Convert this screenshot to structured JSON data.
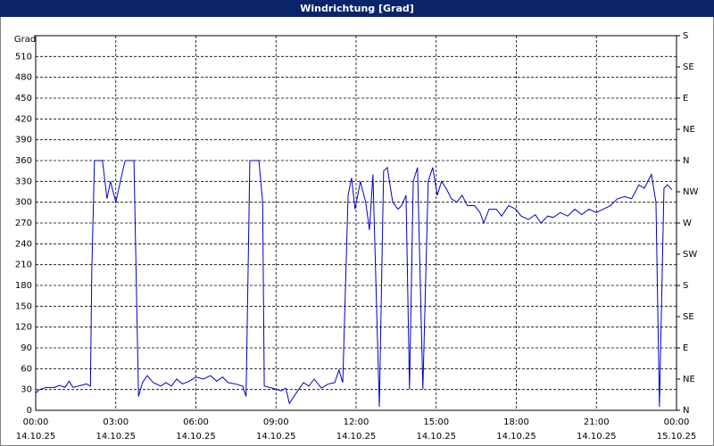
{
  "chart_data": {
    "type": "line",
    "title": "Windrichtung [Grad]",
    "y_label": "Grad",
    "color": "#0000cc",
    "grid": true,
    "xlim": [
      0,
      24
    ],
    "xticks": [
      {
        "value": 0,
        "label": "00:00",
        "sublabel": "14.10.25"
      },
      {
        "value": 3,
        "label": "03:00",
        "sublabel": "14.10.25"
      },
      {
        "value": 6,
        "label": "06:00",
        "sublabel": "14.10.25"
      },
      {
        "value": 9,
        "label": "09:00",
        "sublabel": "14.10.25"
      },
      {
        "value": 12,
        "label": "12:00",
        "sublabel": "14.10.25"
      },
      {
        "value": 15,
        "label": "15:00",
        "sublabel": "14.10.25"
      },
      {
        "value": 18,
        "label": "18:00",
        "sublabel": "14.10.25"
      },
      {
        "value": 21,
        "label": "21:00",
        "sublabel": "14.10.25"
      },
      {
        "value": 24,
        "label": "00:00",
        "sublabel": "15.10.25"
      }
    ],
    "ylim": [
      0,
      540
    ],
    "yticks": [
      0,
      30,
      60,
      90,
      120,
      150,
      180,
      210,
      240,
      270,
      300,
      330,
      360,
      390,
      420,
      450,
      480,
      510
    ],
    "y2lim": [
      0,
      540
    ],
    "y2ticks": [
      {
        "value": 0,
        "label": "N"
      },
      {
        "value": 45,
        "label": "NE"
      },
      {
        "value": 90,
        "label": "E"
      },
      {
        "value": 135,
        "label": "SE"
      },
      {
        "value": 180,
        "label": "S"
      },
      {
        "value": 225,
        "label": "SW"
      },
      {
        "value": 270,
        "label": "W"
      },
      {
        "value": 315,
        "label": "NW"
      },
      {
        "value": 360,
        "label": "N"
      },
      {
        "value": 405,
        "label": "NE"
      },
      {
        "value": 450,
        "label": "E"
      },
      {
        "value": 495,
        "label": "SE"
      },
      {
        "value": 540,
        "label": "S"
      }
    ],
    "x": [
      0,
      0.15,
      0.4,
      0.7,
      0.9,
      1.1,
      1.25,
      1.4,
      1.7,
      1.9,
      2.05,
      2.1,
      2.2,
      2.5,
      2.67,
      2.8,
      3.0,
      3.2,
      3.35,
      3.68,
      3.85,
      4.0,
      4.18,
      4.4,
      4.68,
      4.88,
      5.08,
      5.28,
      5.5,
      5.75,
      6.0,
      6.28,
      6.55,
      6.78,
      7.0,
      7.2,
      7.48,
      7.75,
      7.88,
      8.02,
      8.36,
      8.5,
      8.56,
      8.86,
      9.2,
      9.36,
      9.43,
      9.5,
      9.76,
      10.03,
      10.23,
      10.43,
      10.7,
      10.96,
      11.2,
      11.36,
      11.5,
      11.7,
      11.83,
      11.96,
      12.16,
      12.36,
      12.5,
      12.63,
      12.87,
      13.03,
      13.17,
      13.37,
      13.57,
      13.7,
      13.87,
      14.0,
      14.14,
      14.3,
      14.5,
      14.7,
      14.87,
      15.04,
      15.2,
      15.37,
      15.57,
      15.77,
      15.97,
      16.17,
      16.44,
      16.64,
      16.78,
      16.98,
      17.25,
      17.45,
      17.71,
      17.98,
      18.18,
      18.45,
      18.71,
      18.92,
      19.18,
      19.38,
      19.65,
      19.92,
      20.19,
      20.45,
      20.72,
      20.99,
      21.26,
      21.52,
      21.79,
      22.06,
      22.32,
      22.59,
      22.79,
      23.06,
      23.23,
      23.36,
      23.53,
      23.66,
      23.83
    ],
    "values": [
      25,
      30,
      33,
      33,
      36,
      33,
      42,
      33,
      36,
      38,
      35,
      200,
      360,
      360,
      305,
      330,
      300,
      335,
      360,
      360,
      20,
      40,
      50,
      40,
      35,
      40,
      35,
      45,
      38,
      42,
      48,
      45,
      50,
      42,
      48,
      40,
      38,
      35,
      20,
      360,
      360,
      300,
      35,
      32,
      28,
      32,
      22,
      10,
      25,
      40,
      35,
      45,
      32,
      38,
      40,
      58,
      40,
      310,
      335,
      290,
      330,
      300,
      260,
      340,
      5,
      345,
      350,
      300,
      290,
      295,
      310,
      30,
      330,
      350,
      30,
      330,
      350,
      310,
      330,
      320,
      305,
      300,
      310,
      295,
      295,
      285,
      270,
      290,
      290,
      280,
      295,
      290,
      280,
      275,
      282,
      270,
      280,
      278,
      285,
      280,
      290,
      282,
      290,
      285,
      290,
      295,
      305,
      308,
      305,
      325,
      320,
      340,
      300,
      5,
      320,
      325,
      318
    ]
  }
}
